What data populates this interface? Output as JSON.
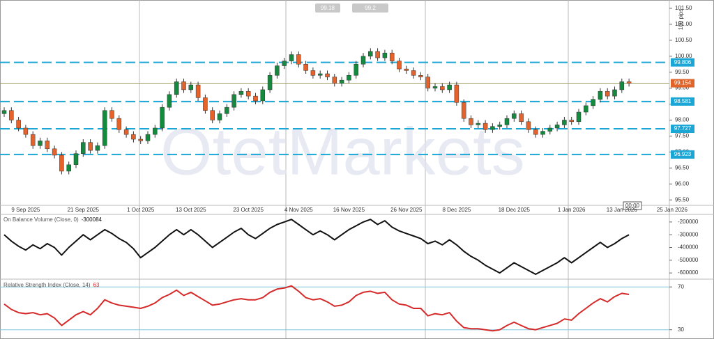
{
  "chart_data": [
    {
      "type": "candlestick",
      "watermark": "OtetMarkets",
      "bid": 99.18,
      "ask": 99.2,
      "range_label": "100 pips",
      "time_label": "00:00",
      "current_price": 99.154,
      "current_color": "#e0632a",
      "levels": [
        99.806,
        98.581,
        97.727,
        96.923
      ],
      "level_color": "#1ba6d6",
      "up_color": "#138a3d",
      "down_color": "#e5622b",
      "categories": [
        null,
        null,
        null,
        "9 Sep 2025",
        null,
        null,
        null,
        null,
        null,
        null,
        null,
        "21 Sep 2025",
        null,
        null,
        null,
        null,
        null,
        null,
        null,
        "1 Oct 2025",
        null,
        null,
        null,
        null,
        null,
        null,
        "13 Oct 2025",
        null,
        null,
        null,
        null,
        null,
        null,
        null,
        "23 Oct 2025",
        null,
        null,
        null,
        null,
        null,
        null,
        "4 Nov 2025",
        null,
        null,
        null,
        null,
        null,
        null,
        "16 Nov 2025",
        null,
        null,
        null,
        null,
        null,
        null,
        null,
        "26 Nov 2025",
        null,
        null,
        null,
        null,
        null,
        null,
        "8 Dec 2025",
        null,
        null,
        null,
        null,
        null,
        null,
        null,
        "18 Dec 2025",
        null,
        null,
        null,
        null,
        null,
        null,
        null,
        "1 Jan 2026",
        null,
        null,
        null,
        null,
        null,
        null,
        "13 Jan 2026",
        null,
        null,
        null,
        null,
        null,
        null,
        "25 Jan 2026"
      ],
      "open": [
        98.2,
        98.3,
        98.0,
        97.75,
        97.55,
        97.2,
        97.35,
        97.1,
        96.9,
        96.4,
        96.6,
        96.95,
        97.3,
        97.05,
        97.2,
        98.3,
        98.05,
        97.7,
        97.55,
        97.4,
        97.35,
        97.55,
        97.75,
        98.4,
        98.8,
        99.2,
        98.95,
        99.1,
        98.7,
        98.3,
        98.0,
        98.2,
        98.4,
        98.8,
        98.9,
        98.75,
        98.6,
        98.95,
        99.4,
        99.7,
        99.85,
        100.05,
        99.75,
        99.55,
        99.4,
        99.45,
        99.35,
        99.15,
        99.25,
        99.4,
        99.75,
        100.0,
        100.15,
        99.95,
        100.1,
        99.85,
        99.6,
        99.55,
        99.4,
        99.35,
        99.0,
        99.05,
        98.95,
        99.1,
        98.55,
        98.05,
        97.85,
        97.9,
        97.7,
        97.8,
        97.85,
        98.05,
        98.2,
        97.95,
        97.7,
        97.55,
        97.65,
        97.75,
        97.85,
        98.0,
        97.95,
        98.25,
        98.45,
        98.65,
        98.9,
        98.75,
        98.95,
        99.2,
        null,
        null,
        null,
        null,
        null,
        null
      ],
      "high": [
        98.4,
        98.4,
        98.1,
        97.85,
        97.65,
        97.45,
        97.45,
        97.2,
        97.0,
        96.7,
        97.05,
        97.4,
        97.4,
        97.3,
        98.4,
        98.4,
        98.15,
        97.8,
        97.65,
        97.5,
        97.65,
        97.85,
        98.5,
        98.9,
        99.3,
        99.3,
        99.2,
        99.2,
        98.8,
        98.4,
        98.3,
        98.5,
        98.9,
        99.0,
        99.0,
        98.85,
        99.05,
        99.5,
        99.8,
        99.95,
        100.15,
        100.15,
        99.85,
        99.65,
        99.55,
        99.55,
        99.45,
        99.35,
        99.5,
        99.85,
        100.1,
        100.25,
        100.25,
        100.2,
        100.2,
        99.95,
        99.7,
        99.65,
        99.5,
        99.45,
        99.15,
        99.15,
        99.2,
        99.2,
        98.65,
        98.15,
        98.0,
        98.0,
        97.9,
        97.95,
        98.15,
        98.3,
        98.3,
        98.05,
        97.8,
        97.75,
        97.85,
        97.95,
        98.1,
        98.1,
        98.35,
        98.55,
        98.75,
        99.0,
        99.0,
        99.05,
        99.3,
        99.3,
        null,
        null,
        null,
        null,
        null,
        null
      ],
      "low": [
        98.1,
        97.9,
        97.65,
        97.45,
        97.1,
        97.1,
        97.0,
        96.8,
        96.3,
        96.3,
        96.5,
        96.85,
        96.95,
        96.95,
        97.1,
        97.95,
        97.6,
        97.45,
        97.3,
        97.25,
        97.25,
        97.45,
        97.65,
        98.3,
        98.7,
        98.85,
        98.85,
        98.6,
        98.2,
        97.9,
        97.9,
        98.1,
        98.3,
        98.7,
        98.65,
        98.5,
        98.5,
        98.85,
        99.3,
        99.6,
        99.75,
        99.65,
        99.45,
        99.3,
        99.3,
        99.25,
        99.05,
        99.05,
        99.15,
        99.3,
        99.65,
        99.9,
        99.85,
        99.85,
        99.75,
        99.5,
        99.45,
        99.3,
        99.25,
        98.9,
        98.9,
        98.85,
        98.85,
        98.45,
        97.95,
        97.75,
        97.75,
        97.6,
        97.6,
        97.7,
        97.75,
        97.95,
        97.85,
        97.6,
        97.45,
        97.45,
        97.55,
        97.65,
        97.75,
        97.85,
        97.85,
        98.15,
        98.35,
        98.55,
        98.65,
        98.65,
        98.85,
        99.05,
        null,
        null,
        null,
        null,
        null,
        null
      ],
      "close": [
        98.3,
        98.0,
        97.75,
        97.55,
        97.2,
        97.35,
        97.1,
        96.9,
        96.4,
        96.6,
        96.95,
        97.3,
        97.05,
        97.2,
        98.3,
        98.05,
        97.7,
        97.55,
        97.4,
        97.35,
        97.55,
        97.75,
        98.4,
        98.8,
        99.2,
        98.95,
        99.1,
        98.7,
        98.3,
        98.0,
        98.2,
        98.4,
        98.8,
        98.9,
        98.75,
        98.6,
        98.95,
        99.4,
        99.7,
        99.85,
        100.05,
        99.75,
        99.55,
        99.4,
        99.45,
        99.35,
        99.15,
        99.25,
        99.4,
        99.75,
        100.0,
        100.15,
        99.95,
        100.1,
        99.85,
        99.6,
        99.55,
        99.4,
        99.35,
        99.0,
        99.05,
        98.95,
        99.1,
        98.55,
        98.05,
        97.85,
        97.9,
        97.7,
        97.8,
        97.85,
        98.05,
        98.2,
        97.95,
        97.7,
        97.55,
        97.65,
        97.75,
        97.85,
        98.0,
        97.95,
        98.25,
        98.45,
        98.65,
        98.9,
        98.75,
        98.95,
        99.2,
        99.15,
        null,
        null,
        null,
        null,
        null,
        null
      ],
      "ylim": [
        95.33,
        101.76
      ],
      "yticks": [
        {
          "value": 101.5,
          "label": "101.50"
        },
        {
          "value": 101,
          "label": "101.00"
        },
        {
          "value": 100.5,
          "label": "100.50"
        },
        {
          "value": 100,
          "label": "100.00"
        },
        {
          "value": 99.5,
          "label": "99.50"
        },
        {
          "value": 99,
          "label": "99.00"
        },
        {
          "value": 98.5,
          "label": "98.50"
        },
        {
          "value": 98,
          "label": "98.00"
        },
        {
          "value": 97.5,
          "label": "97.50"
        },
        {
          "value": 97,
          "label": "97.00"
        },
        {
          "value": 96.5,
          "label": "96.50"
        },
        {
          "value": 96,
          "label": "96.00"
        },
        {
          "value": 95.5,
          "label": "95.50"
        }
      ]
    },
    {
      "type": "line",
      "title": "On Balance Volume (Close, 0)",
      "last_value": -300084,
      "color": "#111111",
      "values": [
        -300000,
        -350000,
        -390000,
        -420000,
        -380000,
        -410000,
        -370000,
        -400000,
        -460000,
        -400000,
        -350000,
        -300000,
        -340000,
        -300000,
        -260000,
        -290000,
        -330000,
        -360000,
        -410000,
        -480000,
        -440000,
        -400000,
        -350000,
        -300000,
        -260000,
        -300000,
        -260000,
        -300000,
        -350000,
        -400000,
        -360000,
        -320000,
        -280000,
        -250000,
        -300000,
        -330000,
        -290000,
        -250000,
        -220000,
        -200000,
        -180000,
        -220000,
        -260000,
        -300000,
        -270000,
        -300000,
        -340000,
        -300000,
        -260000,
        -230000,
        -200000,
        -180000,
        -220000,
        -190000,
        -240000,
        -270000,
        -290000,
        -310000,
        -330000,
        -370000,
        -350000,
        -380000,
        -340000,
        -380000,
        -430000,
        -470000,
        -500000,
        -540000,
        -570000,
        -600000,
        -560000,
        -520000,
        -550000,
        -580000,
        -610000,
        -580000,
        -550000,
        -520000,
        -480000,
        -520000,
        -480000,
        -440000,
        -400000,
        -360000,
        -400000,
        -370000,
        -330000,
        -300084,
        null,
        null,
        null,
        null,
        null,
        null
      ],
      "ylim": [
        -643000,
        -146000
      ],
      "yticks": [
        -200000,
        -300000,
        -400000,
        -500000,
        -600000
      ]
    },
    {
      "type": "line",
      "title": "Relative Strength Index (Close, 14)",
      "last_value": 63,
      "color": "#d62a2a",
      "level_color": "#7fc8dc",
      "values": [
        54,
        49,
        46,
        45,
        46,
        44,
        45,
        41,
        34,
        39,
        44,
        47,
        44,
        50,
        58,
        55,
        53,
        52,
        51,
        50,
        52,
        55,
        60,
        63,
        67,
        62,
        65,
        61,
        57,
        53,
        54,
        56,
        58,
        59,
        58,
        58,
        60,
        65,
        68,
        69,
        71,
        66,
        60,
        58,
        59,
        56,
        52,
        53,
        56,
        62,
        65,
        66,
        64,
        65,
        58,
        54,
        53,
        50,
        50,
        43,
        45,
        44,
        46,
        38,
        32,
        31,
        31,
        30,
        29,
        30,
        34,
        37,
        34,
        31,
        30,
        32,
        34,
        36,
        40,
        39,
        45,
        50,
        55,
        59,
        56,
        61,
        64,
        63,
        null,
        null,
        null,
        null,
        null,
        null
      ],
      "ylim": [
        22,
        76
      ],
      "yticks": [
        70,
        30
      ]
    }
  ]
}
